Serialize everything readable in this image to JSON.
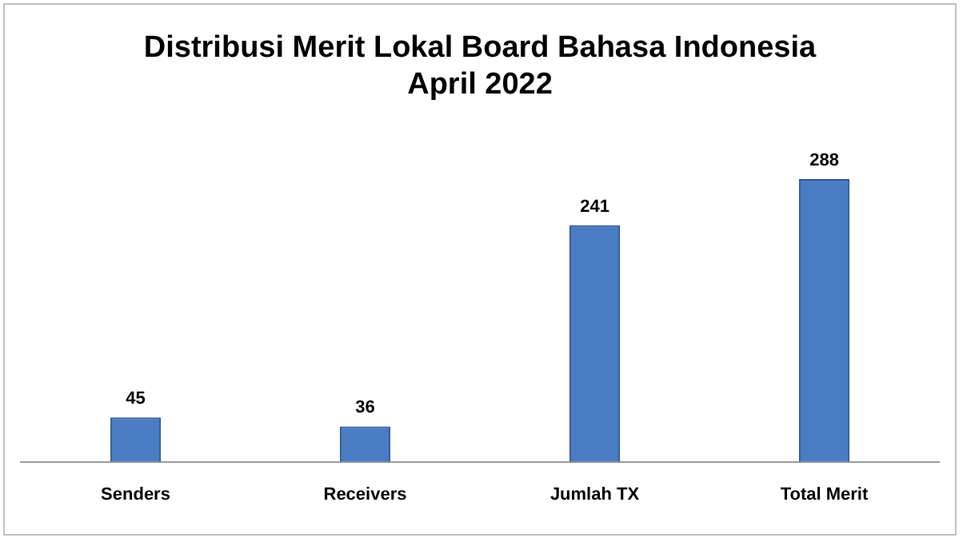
{
  "chart_data": {
    "type": "bar",
    "title": "Distribusi Merit Lokal Board Bahasa Indonesia\nApril 2022",
    "categories": [
      "Senders",
      "Receivers",
      "Jumlah TX",
      "Total Merit"
    ],
    "values": [
      45,
      36,
      241,
      288
    ],
    "color": "#4a7cc4",
    "data_labels": true,
    "grid": false,
    "legend": false,
    "tick_labels": "x"
  }
}
